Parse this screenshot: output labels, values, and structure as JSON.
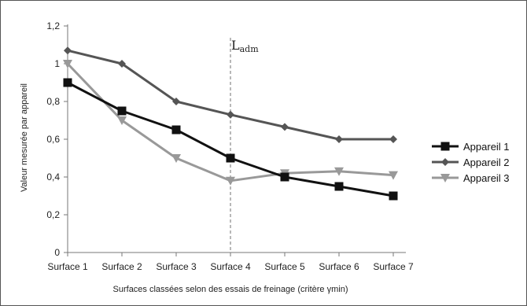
{
  "chart_data": {
    "type": "line",
    "title": "",
    "xlabel": "Surfaces classées selon des essais de freinage (critère γmin)",
    "ylabel": "Valeur mesurée par appareil",
    "categories": [
      "Surface 1",
      "Surface 2",
      "Surface 3",
      "Surface 4",
      "Surface 5",
      "Surface 6",
      "Surface 7"
    ],
    "ylim": [
      0,
      1.2
    ],
    "yticks": [
      "0",
      "0,2",
      "0,4",
      "0,6",
      "0,8",
      "1",
      "1,2"
    ],
    "grid": false,
    "legend_position": "right",
    "series": [
      {
        "name": "Appareil 1",
        "values": [
          0.9,
          0.75,
          0.65,
          0.5,
          0.4,
          0.35,
          0.3
        ],
        "color": "#111111",
        "marker": "square"
      },
      {
        "name": "Appareil 2",
        "values": [
          1.07,
          1.0,
          0.8,
          0.73,
          0.665,
          0.6,
          0.6
        ],
        "color": "#555555",
        "marker": "diamond"
      },
      {
        "name": "Appareil 3",
        "values": [
          1.0,
          0.7,
          0.5,
          0.38,
          0.42,
          0.43,
          0.41
        ],
        "color": "#999999",
        "marker": "triangle-down"
      }
    ],
    "annotation": {
      "label": "L",
      "subscript": "adm",
      "category": "Surface 4",
      "style": "dashed-vertical-line"
    }
  }
}
